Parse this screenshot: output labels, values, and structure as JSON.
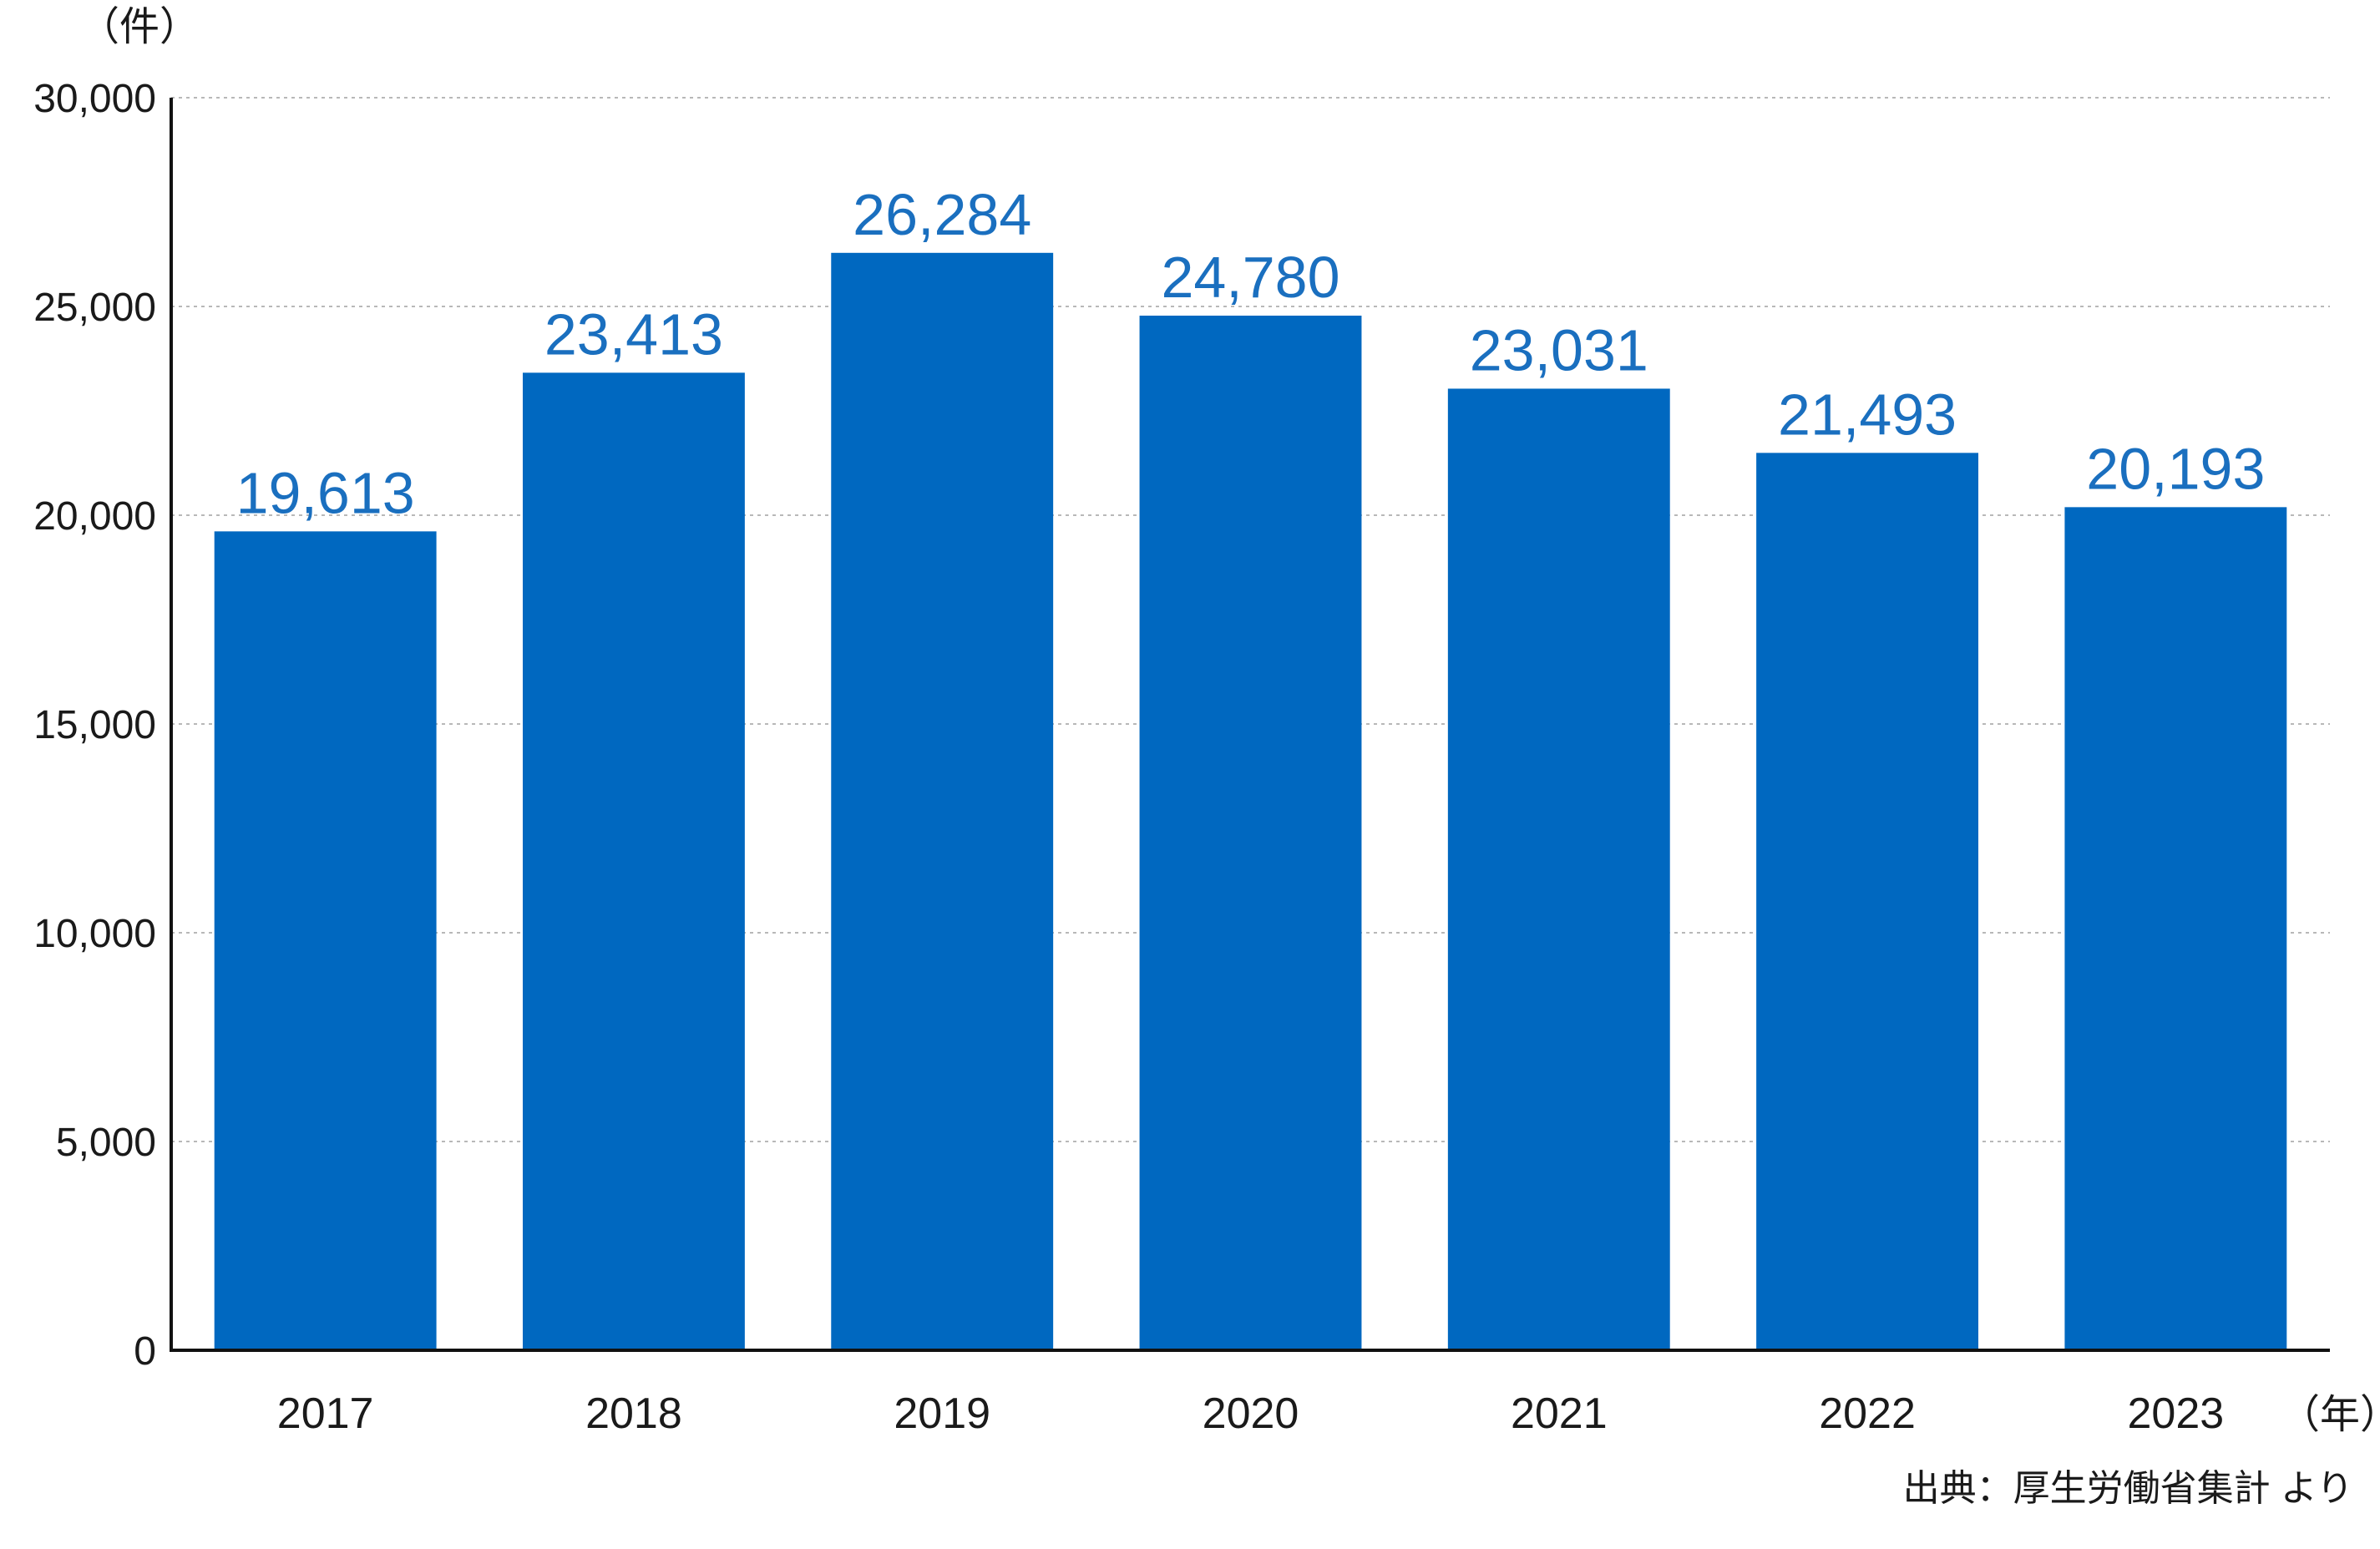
{
  "chart_data": {
    "type": "bar",
    "categories": [
      "2017",
      "2018",
      "2019",
      "2020",
      "2021",
      "2022",
      "2023"
    ],
    "values": [
      19613,
      23413,
      26284,
      24780,
      23031,
      21493,
      20193
    ],
    "value_labels": [
      "19,613",
      "23,413",
      "26,284",
      "24,780",
      "23,031",
      "21,493",
      "20,193"
    ],
    "ylim": [
      0,
      30000
    ],
    "yticks": [
      0,
      5000,
      10000,
      15000,
      20000,
      25000,
      30000
    ],
    "ytick_labels": [
      "0",
      "5,000",
      "10,000",
      "15,000",
      "20,000",
      "25,000",
      "30,000"
    ],
    "y_unit": "（件）",
    "x_unit": "（年）",
    "grid": true,
    "bar_color": "#0068c0",
    "value_label_color": "#1a6fbf"
  },
  "source_note": "出典：厚生労働省集計 より"
}
